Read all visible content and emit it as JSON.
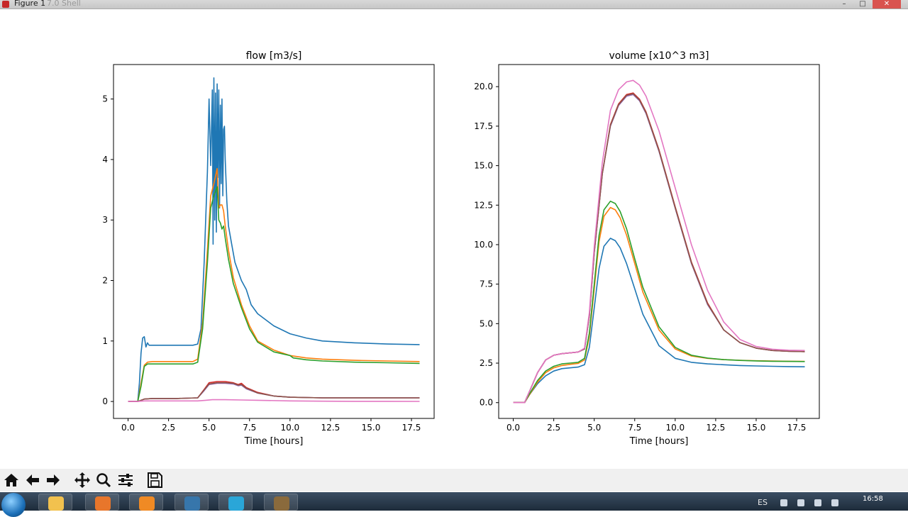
{
  "window": {
    "title": "Figure 1",
    "background_title": "7.0 Shell",
    "minimize_label": "–",
    "maximize_label": "□",
    "close_label": "✕"
  },
  "toolbar": {
    "buttons": [
      {
        "name": "home-button",
        "icon": "home-icon"
      },
      {
        "name": "back-button",
        "icon": "arrow-left-icon"
      },
      {
        "name": "forward-button",
        "icon": "arrow-right-icon"
      },
      {
        "name": "pan-button",
        "icon": "move-icon"
      },
      {
        "name": "zoom-button",
        "icon": "magnifier-icon"
      },
      {
        "name": "configure-subplots-button",
        "icon": "sliders-icon"
      },
      {
        "name": "save-button",
        "icon": "floppy-disk-icon"
      }
    ]
  },
  "taskbar": {
    "language": "ES",
    "clock_time": "16:58",
    "apps": [
      {
        "name": "file-explorer-task",
        "icon": "folder-icon",
        "color": "#f2c14e"
      },
      {
        "name": "firefox-task",
        "icon": "firefox-icon",
        "color": "#e8762b"
      },
      {
        "name": "media-player-task",
        "icon": "play-icon",
        "color": "#f08a24"
      },
      {
        "name": "python-task",
        "icon": "python-icon",
        "color": "#3776ab"
      },
      {
        "name": "app-task",
        "icon": "app-icon",
        "color": "#2aa6d8"
      },
      {
        "name": "gimp-task",
        "icon": "gimp-icon",
        "color": "#8a6a3c"
      }
    ]
  },
  "colors": {
    "c0": "#1f77b4",
    "c1": "#ff7f0e",
    "c2": "#2ca02c",
    "c3": "#d62728",
    "c4": "#9467bd",
    "c5": "#8c564b",
    "c6": "#e377c2"
  },
  "chart_data": [
    {
      "type": "line",
      "title": "flow [m3/s]",
      "xlabel": "Time [hours]",
      "ylabel": "",
      "xlim": [
        -0.9,
        18.9
      ],
      "ylim": [
        -0.28,
        5.57
      ],
      "xticks": [
        "0.0",
        "2.5",
        "5.0",
        "7.5",
        "10.0",
        "12.5",
        "15.0",
        "17.5"
      ],
      "xtick_values": [
        0,
        2.5,
        5,
        7.5,
        10,
        12.5,
        15,
        17.5
      ],
      "yticks": [
        "0",
        "1",
        "2",
        "3",
        "4",
        "5"
      ],
      "ytick_values": [
        0,
        1,
        2,
        3,
        4,
        5
      ],
      "grid": false,
      "series": [
        {
          "color": "c0",
          "x": [
            0,
            0.6,
            0.7,
            0.8,
            0.9,
            1.0,
            1.1,
            1.2,
            1.3,
            1.5,
            2.0,
            3.0,
            4.0,
            4.3,
            4.5,
            4.7,
            4.9,
            5.0,
            5.1,
            5.2,
            5.25,
            5.3,
            5.35,
            5.4,
            5.45,
            5.5,
            5.55,
            5.6,
            5.65,
            5.7,
            5.75,
            5.8,
            5.85,
            5.9,
            5.95,
            6.0,
            6.1,
            6.2,
            6.4,
            6.6,
            7.0,
            7.3,
            7.6,
            8.0,
            9.0,
            10.0,
            11.0,
            12.0,
            14.0,
            16.0,
            18.0
          ],
          "y": [
            0,
            0,
            0.3,
            0.8,
            1.05,
            1.07,
            0.9,
            0.97,
            0.93,
            0.93,
            0.93,
            0.93,
            0.93,
            0.95,
            1.2,
            2.3,
            3.8,
            5.0,
            3.9,
            5.15,
            2.6,
            5.35,
            3.0,
            5.1,
            2.8,
            5.25,
            3.7,
            5.15,
            3.2,
            4.9,
            3.6,
            5.0,
            3.4,
            4.5,
            4.55,
            4.0,
            3.3,
            2.9,
            2.6,
            2.3,
            2.0,
            1.85,
            1.6,
            1.45,
            1.25,
            1.12,
            1.05,
            1.0,
            0.97,
            0.95,
            0.94
          ]
        },
        {
          "color": "c1",
          "x": [
            0,
            0.6,
            0.8,
            1.0,
            1.2,
            1.5,
            3.0,
            4.0,
            4.3,
            4.6,
            4.9,
            5.1,
            5.3,
            5.5,
            5.6,
            5.7,
            5.8,
            5.9,
            6.0,
            6.2,
            6.5,
            7.0,
            7.5,
            8.0,
            9.0,
            10.0,
            11.0,
            12.0,
            14.0,
            16.0,
            18.0
          ],
          "y": [
            0,
            0,
            0.3,
            0.6,
            0.65,
            0.66,
            0.66,
            0.66,
            0.7,
            1.3,
            2.5,
            3.4,
            3.6,
            3.85,
            3.2,
            3.25,
            3.25,
            3.15,
            2.9,
            2.5,
            2.05,
            1.6,
            1.25,
            1.0,
            0.85,
            0.76,
            0.72,
            0.7,
            0.68,
            0.67,
            0.66
          ]
        },
        {
          "color": "c2",
          "x": [
            0,
            0.6,
            0.8,
            1.0,
            1.2,
            1.5,
            3.0,
            4.0,
            4.3,
            4.6,
            4.9,
            5.1,
            5.3,
            5.5,
            5.6,
            5.7,
            5.8,
            5.9,
            6.0,
            6.2,
            6.5,
            7.0,
            7.5,
            8.0,
            9.0,
            10.0,
            10.2,
            11.0,
            12.0,
            14.0,
            16.0,
            18.0
          ],
          "y": [
            0,
            0,
            0.25,
            0.58,
            0.62,
            0.62,
            0.62,
            0.62,
            0.65,
            1.2,
            2.3,
            3.2,
            3.4,
            3.55,
            3.0,
            2.95,
            2.85,
            2.9,
            2.7,
            2.35,
            1.95,
            1.55,
            1.2,
            0.98,
            0.82,
            0.76,
            0.72,
            0.69,
            0.67,
            0.65,
            0.64,
            0.63
          ]
        },
        {
          "color": "c3",
          "x": [
            0,
            0.6,
            1.0,
            1.5,
            3.0,
            4.3,
            4.7,
            5.0,
            5.5,
            6.0,
            6.5,
            6.8,
            7.0,
            7.3,
            8.0,
            9.0,
            10.0,
            12.0,
            14.0,
            16.0,
            18.0
          ],
          "y": [
            0,
            0,
            0.04,
            0.05,
            0.05,
            0.06,
            0.2,
            0.31,
            0.33,
            0.33,
            0.31,
            0.28,
            0.3,
            0.23,
            0.15,
            0.09,
            0.07,
            0.06,
            0.06,
            0.06,
            0.06
          ]
        },
        {
          "color": "c4",
          "x": [
            0,
            0.6,
            1.0,
            1.5,
            3.0,
            4.3,
            4.7,
            5.0,
            5.5,
            6.0,
            6.5,
            6.8,
            7.0,
            7.3,
            8.0,
            9.0,
            10.0,
            12.0,
            14.0,
            16.0,
            18.0
          ],
          "y": [
            0,
            0,
            0.04,
            0.05,
            0.05,
            0.06,
            0.18,
            0.28,
            0.3,
            0.3,
            0.29,
            0.26,
            0.27,
            0.21,
            0.14,
            0.09,
            0.07,
            0.06,
            0.06,
            0.06,
            0.06
          ]
        },
        {
          "color": "c5",
          "x": [
            0,
            0.6,
            1.0,
            1.5,
            3.0,
            4.3,
            4.7,
            5.0,
            5.5,
            6.0,
            6.5,
            6.8,
            7.0,
            7.3,
            8.0,
            9.0,
            10.0,
            12.0,
            14.0,
            16.0,
            18.0
          ],
          "y": [
            0,
            0,
            0.04,
            0.05,
            0.05,
            0.06,
            0.19,
            0.29,
            0.31,
            0.31,
            0.3,
            0.27,
            0.28,
            0.22,
            0.14,
            0.09,
            0.07,
            0.06,
            0.06,
            0.06,
            0.06
          ]
        },
        {
          "color": "c6",
          "x": [
            0,
            0.6,
            1.0,
            3.0,
            4.3,
            4.8,
            5.2,
            6.0,
            7.0,
            8.0,
            10.0,
            12.0,
            14.0,
            16.0,
            18.0
          ],
          "y": [
            0,
            0,
            0.01,
            0.01,
            0.01,
            0.02,
            0.03,
            0.03,
            0.025,
            0.02,
            0.01,
            0.005,
            0.003,
            0.002,
            0.001
          ]
        }
      ]
    },
    {
      "type": "line",
      "title": "volume [x10^3 m3]",
      "xlabel": "Time [hours]",
      "ylabel": "",
      "xlim": [
        -0.9,
        18.9
      ],
      "ylim": [
        -1.0,
        21.4
      ],
      "xticks": [
        "0.0",
        "2.5",
        "5.0",
        "7.5",
        "10.0",
        "12.5",
        "15.0",
        "17.5"
      ],
      "xtick_values": [
        0,
        2.5,
        5,
        7.5,
        10,
        12.5,
        15,
        17.5
      ],
      "yticks": [
        "0.0",
        "2.5",
        "5.0",
        "7.5",
        "10.0",
        "12.5",
        "15.0",
        "17.5",
        "20.0"
      ],
      "ytick_values": [
        0,
        2.5,
        5,
        7.5,
        10,
        12.5,
        15,
        17.5,
        20
      ],
      "grid": false,
      "series": [
        {
          "color": "c0",
          "x": [
            0,
            0.7,
            1.0,
            1.5,
            2.0,
            2.5,
            3.0,
            3.5,
            4.0,
            4.4,
            4.7,
            5.0,
            5.3,
            5.6,
            6.0,
            6.3,
            6.6,
            7.0,
            7.5,
            8.0,
            9.0,
            10.0,
            11.0,
            12.0,
            13.0,
            14.0,
            15.0,
            16.0,
            17.0,
            18.0
          ],
          "y": [
            0,
            0,
            0.5,
            1.2,
            1.7,
            2.0,
            2.15,
            2.2,
            2.25,
            2.4,
            3.5,
            6.0,
            8.5,
            9.9,
            10.4,
            10.25,
            9.8,
            8.8,
            7.2,
            5.6,
            3.6,
            2.8,
            2.55,
            2.45,
            2.4,
            2.35,
            2.32,
            2.3,
            2.28,
            2.27
          ]
        },
        {
          "color": "c1",
          "x": [
            0,
            0.7,
            1.0,
            1.5,
            2.0,
            2.5,
            3.0,
            3.5,
            4.0,
            4.4,
            4.7,
            5.0,
            5.3,
            5.6,
            6.0,
            6.3,
            6.6,
            7.0,
            7.5,
            8.0,
            9.0,
            10.0,
            11.0,
            12.0,
            13.0,
            14.0,
            15.0,
            16.0,
            17.0,
            18.0
          ],
          "y": [
            0,
            0,
            0.5,
            1.3,
            1.9,
            2.2,
            2.35,
            2.42,
            2.48,
            2.7,
            4.2,
            7.2,
            10.2,
            11.8,
            12.35,
            12.2,
            11.7,
            10.6,
            8.8,
            7.0,
            4.6,
            3.4,
            2.95,
            2.8,
            2.72,
            2.68,
            2.65,
            2.63,
            2.62,
            2.61
          ]
        },
        {
          "color": "c2",
          "x": [
            0,
            0.7,
            1.0,
            1.5,
            2.0,
            2.5,
            3.0,
            3.5,
            4.0,
            4.4,
            4.7,
            5.0,
            5.3,
            5.6,
            6.0,
            6.3,
            6.6,
            7.0,
            7.5,
            8.0,
            9.0,
            10.0,
            11.0,
            12.0,
            13.0,
            14.0,
            15.0,
            16.0,
            17.0,
            18.0
          ],
          "y": [
            0,
            0,
            0.55,
            1.4,
            2.0,
            2.3,
            2.45,
            2.5,
            2.55,
            2.8,
            4.4,
            7.5,
            10.6,
            12.2,
            12.75,
            12.6,
            12.1,
            11.0,
            9.1,
            7.3,
            4.8,
            3.5,
            3.0,
            2.82,
            2.72,
            2.67,
            2.64,
            2.62,
            2.61,
            2.6
          ]
        },
        {
          "color": "c3",
          "x": [
            0,
            0.7,
            1.0,
            1.5,
            2.0,
            2.5,
            3.0,
            3.5,
            4.0,
            4.4,
            4.7,
            5.0,
            5.5,
            6.0,
            6.5,
            7.0,
            7.4,
            7.8,
            8.2,
            9.0,
            10.0,
            11.0,
            12.0,
            13.0,
            14.0,
            15.0,
            16.0,
            17.0,
            18.0
          ],
          "y": [
            0,
            0,
            0.7,
            1.9,
            2.7,
            3.0,
            3.1,
            3.15,
            3.2,
            3.4,
            5.5,
            9.5,
            14.5,
            17.6,
            18.9,
            19.5,
            19.6,
            19.2,
            18.4,
            16.0,
            12.4,
            8.9,
            6.3,
            4.6,
            3.8,
            3.45,
            3.3,
            3.25,
            3.23
          ]
        },
        {
          "color": "c4",
          "x": [
            0,
            0.7,
            1.0,
            1.5,
            2.0,
            2.5,
            3.0,
            3.5,
            4.0,
            4.4,
            4.7,
            5.0,
            5.5,
            6.0,
            6.5,
            7.0,
            7.4,
            7.8,
            8.2,
            9.0,
            10.0,
            11.0,
            12.0,
            13.0,
            14.0,
            15.0,
            16.0,
            17.0,
            18.0
          ],
          "y": [
            0,
            0,
            0.7,
            1.9,
            2.7,
            3.0,
            3.1,
            3.15,
            3.2,
            3.4,
            5.5,
            9.5,
            14.5,
            17.5,
            18.8,
            19.4,
            19.5,
            19.1,
            18.3,
            15.9,
            12.3,
            8.8,
            6.2,
            4.6,
            3.8,
            3.45,
            3.3,
            3.25,
            3.23
          ]
        },
        {
          "color": "c5",
          "x": [
            0,
            0.7,
            1.0,
            1.5,
            2.0,
            2.5,
            3.0,
            3.5,
            4.0,
            4.4,
            4.7,
            5.0,
            5.5,
            6.0,
            6.5,
            7.0,
            7.4,
            7.8,
            8.2,
            9.0,
            10.0,
            11.0,
            12.0,
            13.0,
            14.0,
            15.0,
            16.0,
            17.0,
            18.0
          ],
          "y": [
            0,
            0,
            0.7,
            1.9,
            2.7,
            3.0,
            3.1,
            3.15,
            3.2,
            3.4,
            5.5,
            9.5,
            14.5,
            17.55,
            18.85,
            19.45,
            19.55,
            19.15,
            18.35,
            15.95,
            12.35,
            8.85,
            6.25,
            4.6,
            3.8,
            3.45,
            3.3,
            3.25,
            3.23
          ]
        },
        {
          "color": "c6",
          "x": [
            0,
            0.7,
            1.0,
            1.5,
            2.0,
            2.5,
            3.0,
            3.5,
            4.0,
            4.4,
            4.7,
            5.0,
            5.5,
            6.0,
            6.5,
            7.0,
            7.4,
            7.8,
            8.2,
            9.0,
            10.0,
            11.0,
            12.0,
            13.0,
            14.0,
            15.0,
            16.0,
            17.0,
            18.0
          ],
          "y": [
            0,
            0,
            0.7,
            1.9,
            2.7,
            3.0,
            3.1,
            3.15,
            3.2,
            3.45,
            5.7,
            9.9,
            15.2,
            18.5,
            19.8,
            20.3,
            20.4,
            20.1,
            19.4,
            17.2,
            13.6,
            10.0,
            7.1,
            5.1,
            4.0,
            3.55,
            3.38,
            3.32,
            3.3
          ]
        }
      ]
    }
  ]
}
